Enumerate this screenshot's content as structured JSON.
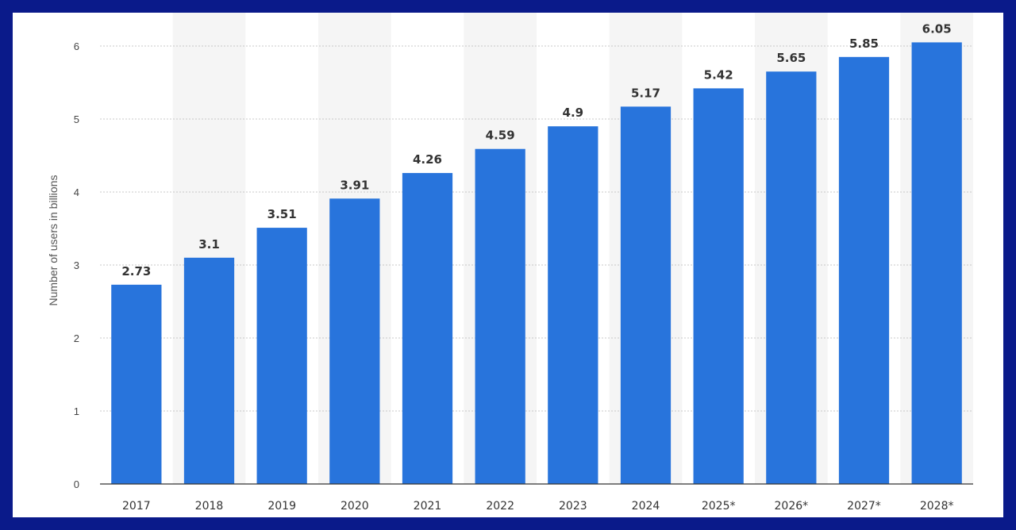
{
  "chart_data": {
    "type": "bar",
    "title": "",
    "xlabel": "",
    "ylabel": "Number of users in billions",
    "categories": [
      "2017",
      "2018",
      "2019",
      "2020",
      "2021",
      "2022",
      "2023",
      "2024",
      "2025*",
      "2026*",
      "2027*",
      "2028*"
    ],
    "series": [
      {
        "values": [
          2.73,
          3.1,
          3.51,
          3.91,
          4.26,
          4.59,
          4.9,
          5.17,
          5.42,
          5.65,
          5.85,
          6.05
        ],
        "labels": [
          "2.73",
          "3.1",
          "3.51",
          "3.91",
          "4.26",
          "4.59",
          "4.9",
          "5.17",
          "5.42",
          "5.65",
          "5.85",
          "6.05"
        ]
      }
    ],
    "ylim": [
      0,
      6
    ],
    "yticks": [
      0,
      1,
      2,
      3,
      4,
      5,
      6
    ],
    "ytick_labels": [
      "0",
      "1",
      "2",
      "3",
      "4",
      "5",
      "6"
    ],
    "grid": true,
    "legend": "none",
    "bar_color": "#2874dc",
    "band_color": "#f5f5f5",
    "grid_color": "#c8c8c8",
    "axis_color": "#333333"
  }
}
